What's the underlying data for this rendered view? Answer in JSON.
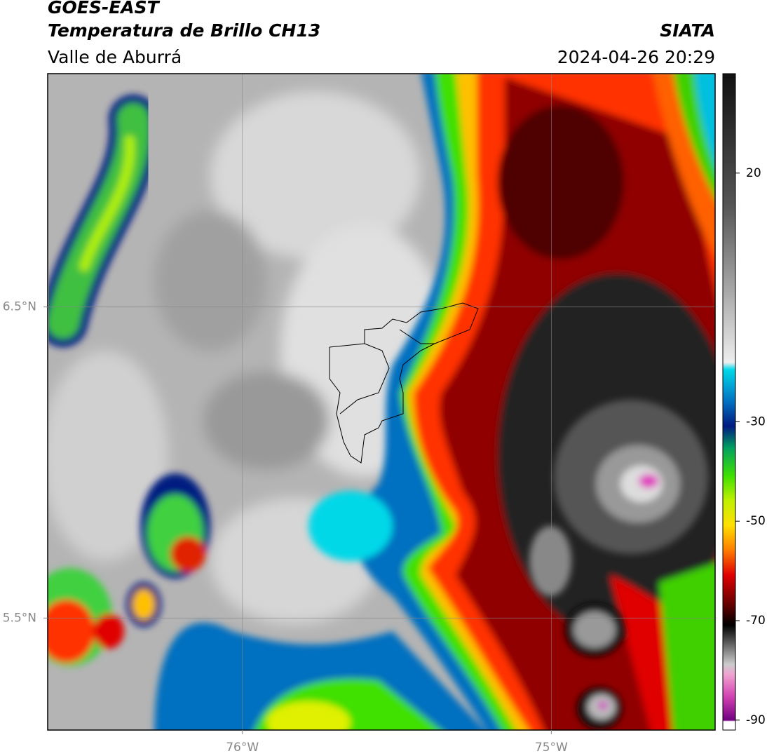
{
  "header": {
    "title": "GOES-EAST",
    "subtitle": "Temperatura de Brillo CH13",
    "region": "Valle de Aburrá",
    "agency": "SIATA",
    "datetime": "2024-04-26 20:29"
  },
  "map": {
    "xlim": [
      -76.63,
      -74.47
    ],
    "ylim": [
      5.14,
      7.25
    ],
    "xticks": [
      {
        "value": -76,
        "label": "76°W"
      },
      {
        "value": -75,
        "label": "75°W"
      }
    ],
    "yticks": [
      {
        "value": 5.5,
        "label": "5.5°N"
      },
      {
        "value": 6.5,
        "label": "6.5°N"
      }
    ],
    "grid": true
  },
  "colorbar": {
    "lim": [
      -92,
      40
    ],
    "ticks": [
      20,
      -30,
      -50,
      -70,
      -90
    ]
  }
}
